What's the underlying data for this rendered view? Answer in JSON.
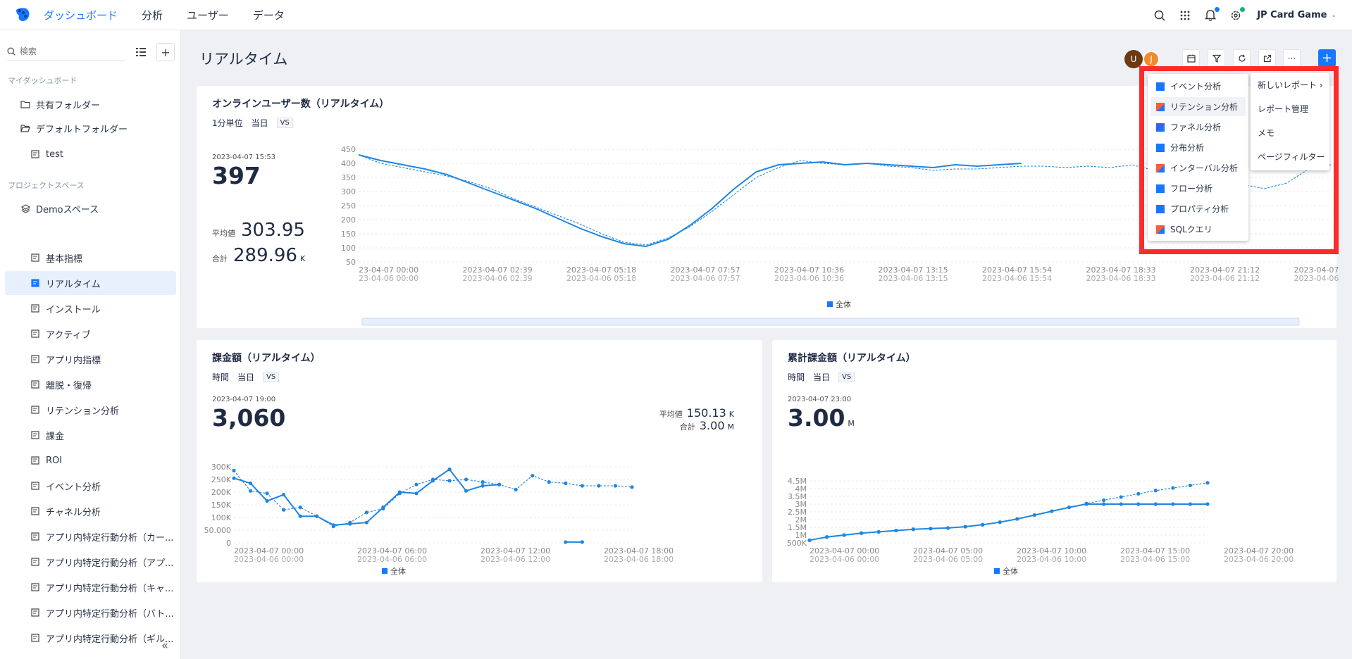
{
  "topbar": {
    "tabs": [
      "ダッシュボード",
      "分析",
      "ユーザー",
      "データ"
    ],
    "project": "JP Card Game"
  },
  "sidebar": {
    "search_placeholder": "検索",
    "my_dashboard": "マイダッシュボード",
    "folders": [
      "共有フォルダー",
      "デフォルトフォルダー",
      "test"
    ],
    "project_space": "プロジェクトスペース",
    "space": "Demoスペース",
    "items": [
      "基本指標",
      "リアルタイム",
      "インストール",
      "アクティブ",
      "アプリ内指標",
      "離脱・復帰",
      "リテンション分析",
      "課金",
      "ROI",
      "イベント分析",
      "チャネル分析",
      "アプリ内特定行動分析（カー...",
      "アプリ内特定行動分析（アプ...",
      "アプリ内特定行動分析（キャ...",
      "アプリ内特定行動分析（バト...",
      "アプリ内特定行動分析（ギル..."
    ],
    "collapse": "«"
  },
  "page": {
    "title": "リアルタイム",
    "avatars": [
      "U",
      "J"
    ],
    "more": "···",
    "add": "+"
  },
  "card1": {
    "title": "オンラインユーザー数（リアルタイム）",
    "controls": [
      "1分単位",
      "当日"
    ],
    "vs": "VS",
    "timestamp": "2023-04-07 15:53",
    "value": "397",
    "avg_label": "平均値",
    "avg": "303.95",
    "sum_label": "合計",
    "sum": "289.96",
    "sum_unit": "K"
  },
  "card2": {
    "title": "課金額（リアルタイム）",
    "controls": [
      "時間",
      "当日"
    ],
    "vs": "VS",
    "timestamp": "2023-04-07 19:00",
    "value": "3,060",
    "avg_label": "平均値",
    "avg": "150.13",
    "avg_unit": "K",
    "sum_label": "合計",
    "sum": "3.00",
    "sum_unit": "M"
  },
  "card3": {
    "title": "累計課金額（リアルタイム）",
    "controls": [
      "時間",
      "当日"
    ],
    "vs": "VS",
    "timestamp": "2023-04-07 23:00",
    "value": "3.00",
    "unit": "M"
  },
  "add_menu": {
    "items": [
      {
        "label": "イベント分析",
        "color": "#1677ff"
      },
      {
        "label": "リテンション分析",
        "color": "#ff5a3c"
      },
      {
        "label": "ファネル分析",
        "color": "#3a5cf5"
      },
      {
        "label": "分布分析",
        "color": "#1677ff"
      },
      {
        "label": "インターバル分析",
        "color": "#ff5a3c"
      },
      {
        "label": "フロー分析",
        "color": "#1677ff"
      },
      {
        "label": "プロパティ分析",
        "color": "#1677ff"
      },
      {
        "label": "SQLクエリ",
        "color": "#ff5a3c"
      }
    ],
    "submenu": [
      "新しいレポート",
      "レポート管理",
      "メモ",
      "ページフィルター"
    ],
    "submenu_arrow": "›"
  },
  "chart_data": [
    {
      "type": "line",
      "ylim": [
        50,
        450
      ],
      "yticks": [
        "450",
        "400",
        "350",
        "300",
        "250",
        "200",
        "150",
        "100",
        "50"
      ],
      "xticks": [
        "23-04-07 00:00",
        "2023-04-07 02:39",
        "2023-04-07 05:18",
        "2023-04-07 07:57",
        "2023-04-07 10:36",
        "2023-04-07 13:15",
        "2023-04-07 15:54",
        "2023-04-07 18:33",
        "2023-04-07 21:12",
        "2023-04-07"
      ],
      "xticks_compare": [
        "23-04-06 00:00",
        "2023-04-06 02:39",
        "2023-04-06 05:18",
        "2023-04-06 07:57",
        "2023-04-06 10:36",
        "2023-04-06 13:15",
        "2023-04-06 15:54",
        "2023-04-06 18:33",
        "2023-04-06 21:12",
        "2023-04-06"
      ],
      "legend": "全体",
      "series": [
        {
          "name": "today",
          "values": [
            430,
            410,
            395,
            380,
            360,
            330,
            300,
            270,
            240,
            205,
            170,
            140,
            115,
            105,
            130,
            180,
            240,
            310,
            370,
            395,
            400,
            405,
            395,
            400,
            395,
            390,
            385,
            395,
            390,
            395,
            400
          ]
        },
        {
          "name": "yesterday",
          "values": [
            430,
            400,
            385,
            370,
            355,
            335,
            310,
            275,
            245,
            215,
            185,
            150,
            120,
            110,
            135,
            175,
            230,
            290,
            350,
            385,
            410,
            400,
            395,
            400,
            390,
            385,
            375,
            380,
            380,
            385,
            390,
            390,
            385,
            390,
            385,
            395,
            375,
            360,
            355,
            340,
            325,
            310,
            330,
            380,
            395
          ]
        }
      ]
    },
    {
      "type": "line",
      "ylim": [
        0,
        300000
      ],
      "yticks": [
        "300K",
        "250K",
        "200K",
        "150K",
        "100K",
        "50.000",
        "0"
      ],
      "xticks": [
        "2023-04-07 00:00",
        "2023-04-07 06:00",
        "2023-04-07 12:00",
        "2023-04-07 18:00"
      ],
      "xticks_compare": [
        "2023-04-06 00:00",
        "2023-04-06 06:00",
        "2023-04-06 12:00",
        "2023-04-06 18:00"
      ],
      "legend": "全体",
      "series": [
        {
          "name": "today",
          "values": [
            255000,
            235000,
            165000,
            190000,
            105000,
            105000,
            70000,
            75000,
            80000,
            140000,
            200000,
            195000,
            245000,
            290000,
            205000,
            225000,
            230000,
            null,
            null,
            null,
            3000,
            3060
          ]
        },
        {
          "name": "yesterday",
          "values": [
            285000,
            205000,
            195000,
            130000,
            140000,
            105000,
            65000,
            80000,
            120000,
            135000,
            195000,
            230000,
            250000,
            245000,
            250000,
            240000,
            230000,
            210000,
            265000,
            240000,
            235000,
            225000,
            225000,
            225000,
            220000
          ]
        }
      ]
    },
    {
      "type": "line",
      "yticks": [
        "4.5M",
        "4M",
        "3.5M",
        "3M",
        "2.5M",
        "2M",
        "1.5M",
        "1M",
        "500K"
      ],
      "ylim": [
        0,
        4800000
      ],
      "xticks": [
        "2023-04-07 00:00",
        "2023-04-07 05:00",
        "2023-04-07 10:00",
        "2023-04-07 15:00",
        "2023-04-07 20:00"
      ],
      "xticks_compare": [
        "2023-04-06 00:00",
        "2023-04-06 05:00",
        "2023-04-06 10:00",
        "2023-04-06 15:00",
        "2023-04-06 20:00"
      ],
      "legend": "全体",
      "series": [
        {
          "name": "today",
          "values": [
            200000,
            450000,
            600000,
            750000,
            850000,
            950000,
            1050000,
            1100000,
            1150000,
            1250000,
            1400000,
            1600000,
            1850000,
            2150000,
            2450000,
            2750000,
            3000000,
            3000000,
            3000000,
            3000000,
            3000000,
            3000000,
            3000000,
            3000000
          ]
        },
        {
          "name": "yesterday",
          "values": [
            200000,
            450000,
            600000,
            750000,
            850000,
            950000,
            1050000,
            1100000,
            1150000,
            1250000,
            1400000,
            1600000,
            1850000,
            2150000,
            2450000,
            2750000,
            3050000,
            3300000,
            3550000,
            3800000,
            4050000,
            4250000,
            4450000,
            4650000
          ]
        }
      ]
    }
  ],
  "colors": {
    "accent": "#1677ff",
    "line": "#1f86e0",
    "danger": "#ff2a2a"
  }
}
